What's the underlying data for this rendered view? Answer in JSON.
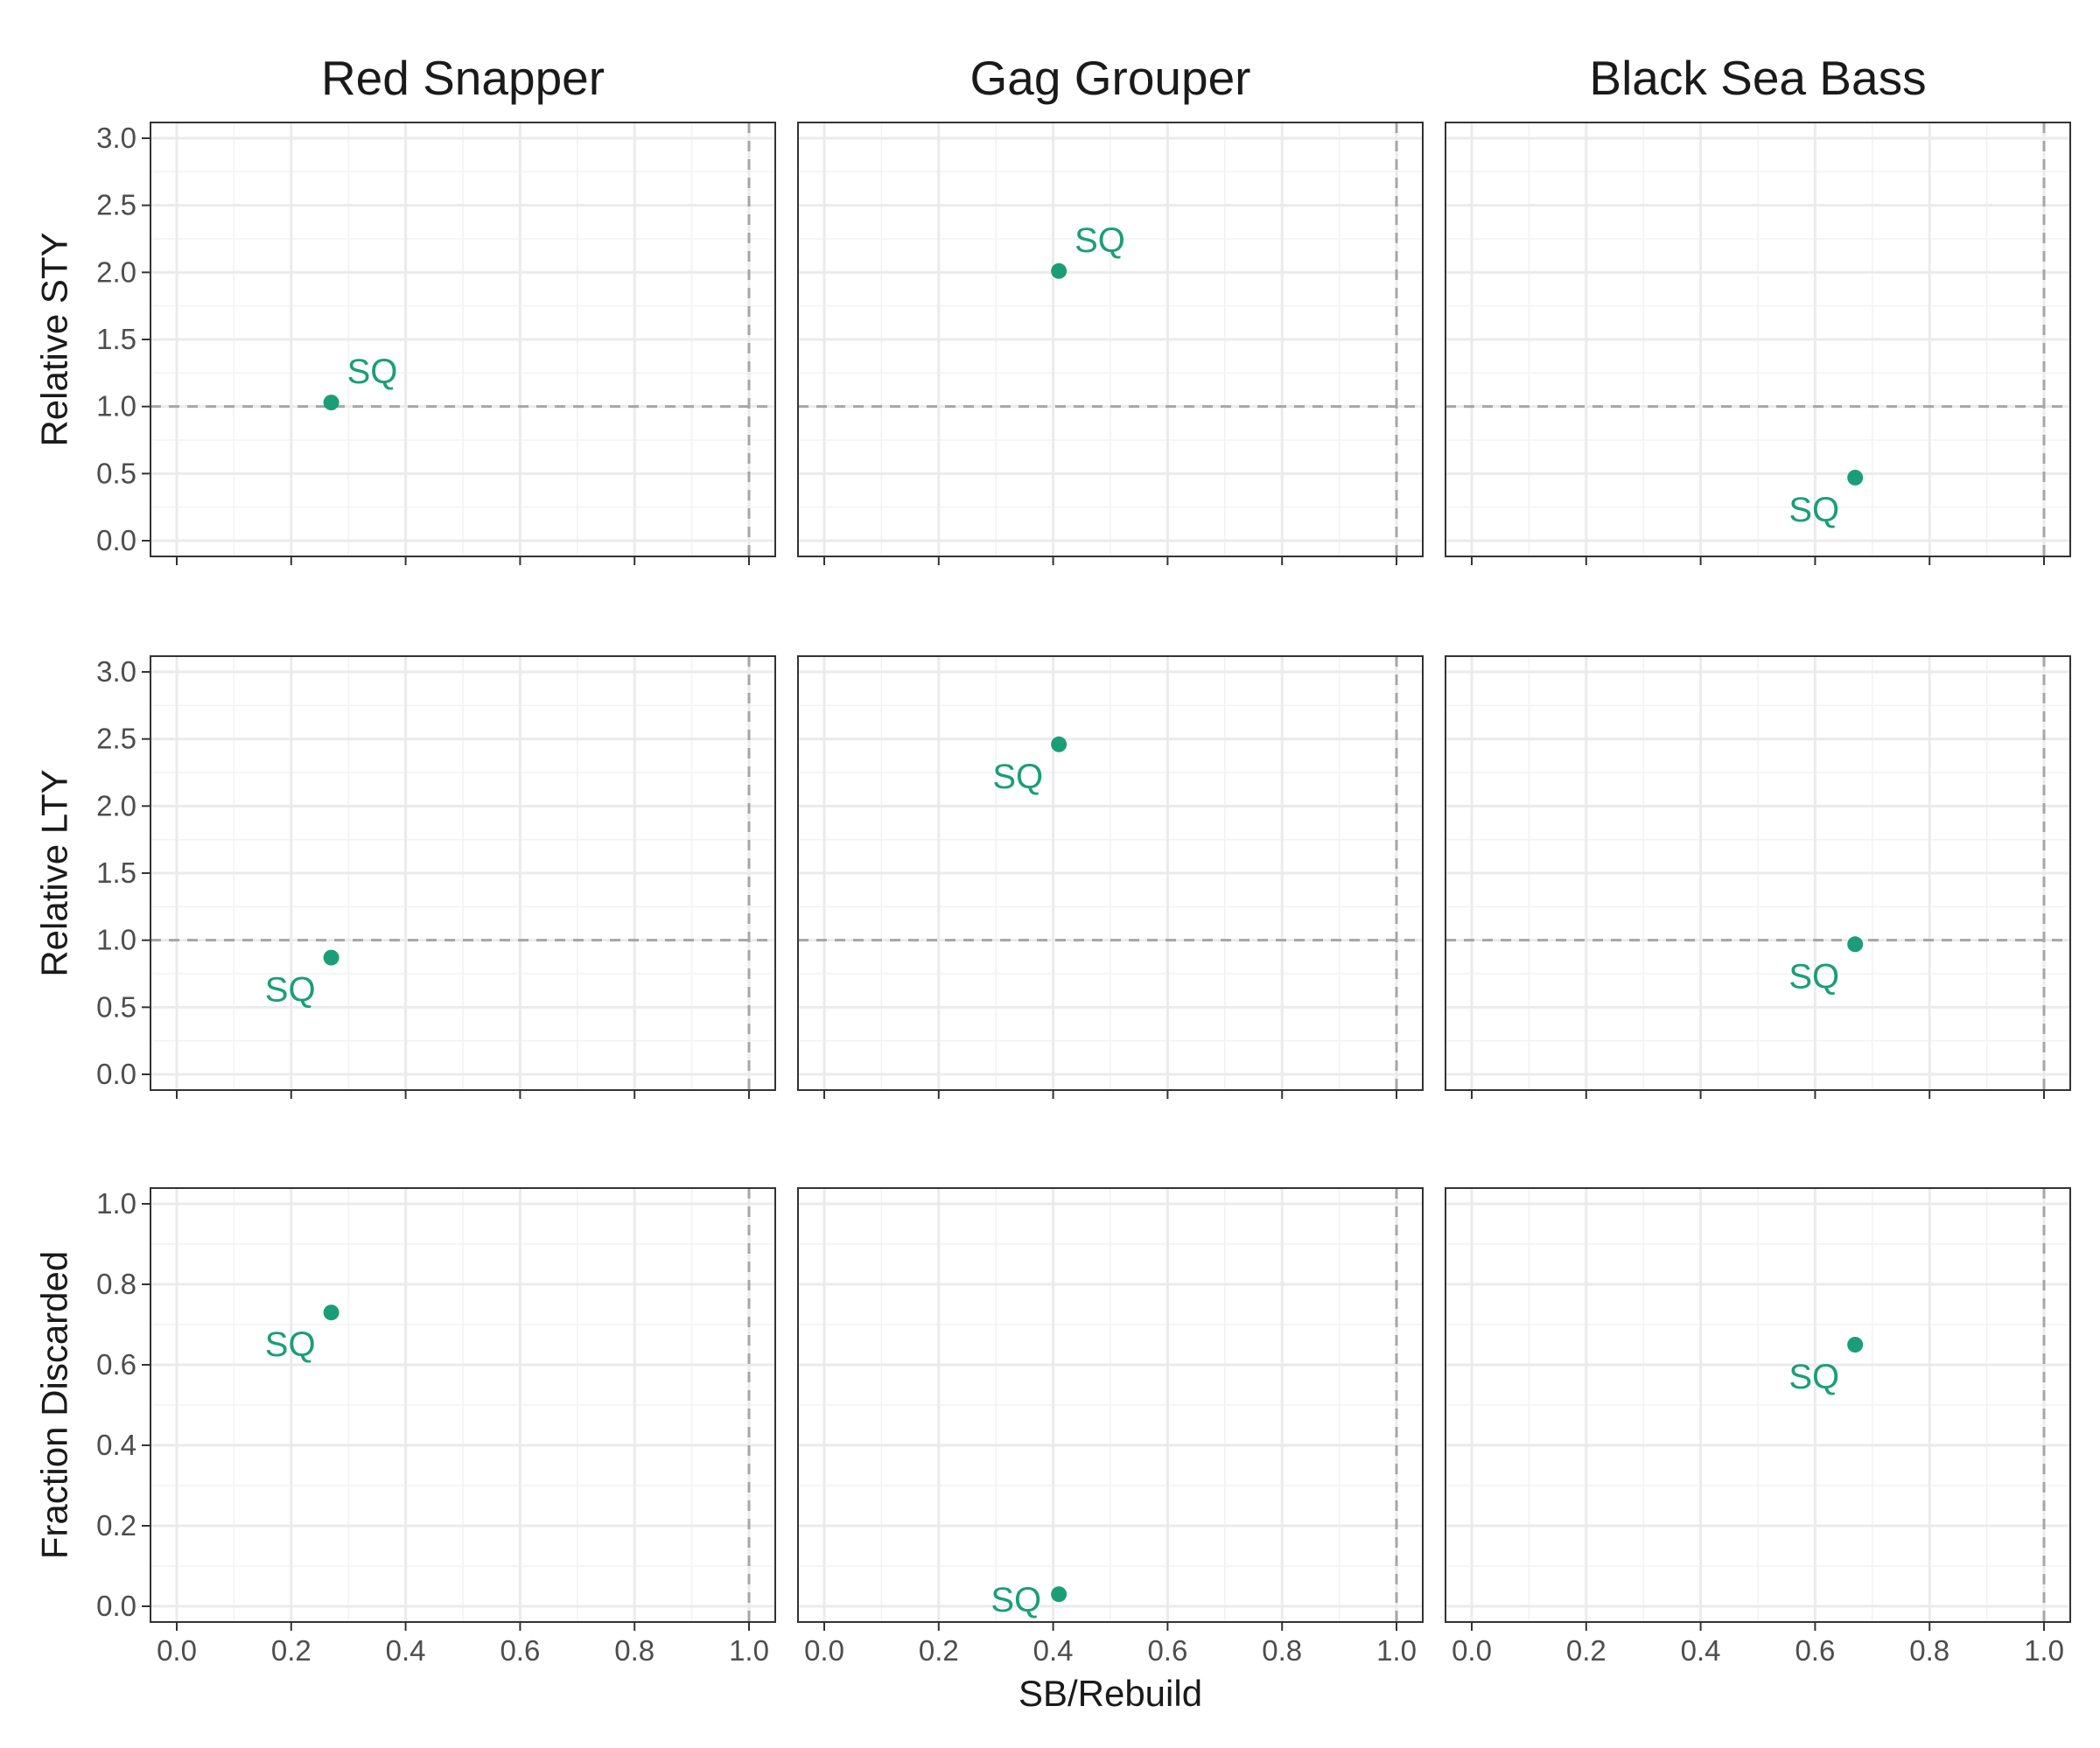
{
  "chart_data": {
    "type": "scatter",
    "layout": "facet-grid 3x3",
    "facet_columns": [
      "Red Snapper",
      "Gag Grouper",
      "Black Sea Bass"
    ],
    "facet_rows": [
      {
        "ylabel": "Relative STY",
        "ylim": [
          0,
          3.0
        ],
        "yticks": [
          "0.0",
          "0.5",
          "1.0",
          "1.5",
          "2.0",
          "2.5",
          "3.0"
        ],
        "yticks_values": [
          0,
          0.5,
          1.0,
          1.5,
          2.0,
          2.5,
          3.0
        ],
        "hline": 1.0
      },
      {
        "ylabel": "Relative LTY",
        "ylim": [
          0,
          3.0
        ],
        "yticks": [
          "0.0",
          "0.5",
          "1.0",
          "1.5",
          "2.0",
          "2.5",
          "3.0"
        ],
        "yticks_values": [
          0,
          0.5,
          1.0,
          1.5,
          2.0,
          2.5,
          3.0
        ],
        "hline": 1.0
      },
      {
        "ylabel": "Fraction Discarded",
        "ylim": [
          0,
          1.0
        ],
        "yticks": [
          "0.0",
          "0.2",
          "0.4",
          "0.6",
          "0.8",
          "1.0"
        ],
        "yticks_values": [
          0,
          0.2,
          0.4,
          0.6,
          0.8,
          1.0
        ],
        "hline": null
      }
    ],
    "xlabel": "SB/Rebuild",
    "xlim": [
      0,
      1.0
    ],
    "xticks": [
      "0.0",
      "0.2",
      "0.4",
      "0.6",
      "0.8",
      "1.0"
    ],
    "xticks_values": [
      0,
      0.2,
      0.4,
      0.6,
      0.8,
      1.0
    ],
    "vline": 1.0,
    "grid": true,
    "point_color": "#1b9e77",
    "points": [
      {
        "row": 0,
        "col": 0,
        "x": 0.27,
        "y": 1.03,
        "label": "SQ",
        "label_side": "upper-right"
      },
      {
        "row": 0,
        "col": 1,
        "x": 0.41,
        "y": 2.01,
        "label": "SQ",
        "label_side": "upper-right"
      },
      {
        "row": 0,
        "col": 2,
        "x": 0.67,
        "y": 0.47,
        "label": "SQ",
        "label_side": "lower-left"
      },
      {
        "row": 1,
        "col": 0,
        "x": 0.27,
        "y": 0.87,
        "label": "SQ",
        "label_side": "lower-left"
      },
      {
        "row": 1,
        "col": 1,
        "x": 0.41,
        "y": 2.46,
        "label": "SQ",
        "label_side": "lower-left"
      },
      {
        "row": 1,
        "col": 2,
        "x": 0.67,
        "y": 0.97,
        "label": "SQ",
        "label_side": "lower-left"
      },
      {
        "row": 2,
        "col": 0,
        "x": 0.27,
        "y": 0.73,
        "label": "SQ",
        "label_side": "lower-left"
      },
      {
        "row": 2,
        "col": 1,
        "x": 0.41,
        "y": 0.03,
        "label": "SQ",
        "label_side": "left"
      },
      {
        "row": 2,
        "col": 2,
        "x": 0.67,
        "y": 0.65,
        "label": "SQ",
        "label_side": "lower-left"
      }
    ]
  }
}
